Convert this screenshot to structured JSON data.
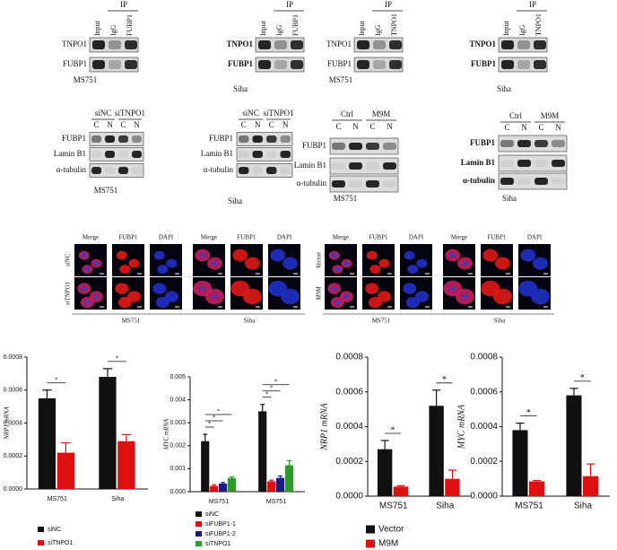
{
  "co_ip": [
    {
      "header": "IP",
      "lanes": [
        "Input",
        "IgG",
        "FUBP1"
      ],
      "rows": [
        "TNPO1",
        "FUBP1"
      ],
      "cell_line": "MS751"
    },
    {
      "header": "IP",
      "lanes": [
        "Input",
        "IgG",
        "FUBP1"
      ],
      "rows": [
        "TNPO1",
        "FUBP1"
      ],
      "cell_line": "Siha"
    },
    {
      "header": "IP",
      "lanes": [
        "Input",
        "IgG",
        "TNPO1"
      ],
      "rows": [
        "TNPO1",
        "FUBP1"
      ],
      "cell_line": "MS751"
    },
    {
      "header": "IP",
      "lanes": [
        "Input",
        "IgG",
        "TNPO1"
      ],
      "rows": [
        "TNPO1",
        "FUBP1"
      ],
      "cell_line": "Siha"
    }
  ],
  "fractionation": [
    {
      "groups": [
        "siNC",
        "siTNPO1"
      ],
      "lanes": [
        "C",
        "N",
        "C",
        "N"
      ],
      "rows": [
        "FUBP1",
        "Lamin B1",
        "α-tubulin"
      ],
      "cell_line": "MS751"
    },
    {
      "groups": [
        "siNC",
        "siTNPO1"
      ],
      "lanes": [
        "C",
        "N",
        "C",
        "N"
      ],
      "rows": [
        "FUBP1",
        "Lamin B1",
        "α-tubulin"
      ],
      "cell_line": "Siha"
    },
    {
      "groups": [
        "Ctrl",
        "M9M"
      ],
      "lanes": [
        "C",
        "N",
        "C",
        "N"
      ],
      "rows": [
        "FUBP1",
        "Lamin B1",
        "α-tubulin"
      ],
      "cell_line": "MS751"
    },
    {
      "groups": [
        "Ctrl",
        "M9M"
      ],
      "lanes": [
        "C",
        "N",
        "C",
        "N"
      ],
      "rows": [
        "FUBP1",
        "Lamin B1",
        "α-tubulin"
      ],
      "cell_line": "Siha"
    }
  ],
  "imaging": [
    {
      "columns": [
        "Merge",
        "FUBP1",
        "DAPI",
        "Merge",
        "FUBP1",
        "DAPI"
      ],
      "rows": [
        "siNC",
        "siTNPO1"
      ],
      "cell_lines": [
        "MS751",
        "Siha"
      ]
    },
    {
      "columns": [
        "Merge",
        "FUBP1",
        "DAPI",
        "Merge",
        "FUBP1",
        "DAPI"
      ],
      "rows": [
        "Vector",
        "M9M"
      ],
      "cell_lines": [
        "MS751",
        "Siha"
      ]
    }
  ],
  "chart_data": [
    {
      "type": "bar",
      "y_label": "NRP1 mRNA",
      "categories": [
        "MS751",
        "Siha"
      ],
      "series": [
        {
          "name": "siNC",
          "color": "#111111",
          "values": [
            0.00055,
            0.00068
          ],
          "errors": [
            5e-05,
            5e-05
          ]
        },
        {
          "name": "siTNPO1",
          "color": "#e01010",
          "values": [
            0.00022,
            0.00029
          ],
          "errors": [
            6e-05,
            4e-05
          ]
        }
      ],
      "ylim": [
        0,
        0.0008
      ],
      "yticks": [
        {
          "value": 0,
          "label": "0.0000"
        },
        0.0002,
        0.0004,
        0.0006,
        0.0008
      ],
      "annotations": [
        "*",
        "*"
      ]
    },
    {
      "type": "bar",
      "y_label": "MYC mRNA",
      "categories": [
        "MS751",
        "MS751"
      ],
      "series": [
        {
          "name": "siNC",
          "color": "#111111",
          "values": [
            0.0022,
            0.0035
          ],
          "errors": [
            0.0003,
            0.0003
          ]
        },
        {
          "name": "siFUBP1-1",
          "color": "#e01010",
          "values": [
            0.00025,
            0.00045
          ],
          "errors": [
            5e-05,
            5e-05
          ]
        },
        {
          "name": "siFUBP1-2",
          "color": "#1a1a80",
          "values": [
            0.00035,
            0.0006
          ],
          "errors": [
            5e-05,
            8e-05
          ]
        },
        {
          "name": "siTNPO1",
          "color": "#2e9a2e",
          "values": [
            0.0006,
            0.00115
          ],
          "errors": [
            5e-05,
            0.0002
          ]
        }
      ],
      "ylim": [
        0,
        0.005
      ],
      "yticks": [
        {
          "value": 0,
          "label": "0.000"
        },
        0.001,
        0.002,
        0.003,
        0.004,
        0.005
      ],
      "annotations": [
        "*",
        "*",
        "*",
        "*",
        "*",
        "*"
      ]
    },
    {
      "type": "bar",
      "y_label": "NRP1 mRNA",
      "categories": [
        "MS751",
        "Siha"
      ],
      "series": [
        {
          "name": "Vector",
          "color": "#111111",
          "values": [
            0.00027,
            0.00052
          ],
          "errors": [
            5e-05,
            9e-05
          ]
        },
        {
          "name": "M9M",
          "color": "#e01010",
          "values": [
            5.5e-05,
            0.0001
          ],
          "errors": [
            5e-06,
            5e-05
          ]
        }
      ],
      "ylim": [
        0,
        0.0008
      ],
      "yticks": [
        {
          "value": 0,
          "label": "0.0000"
        },
        0.0002,
        0.0004,
        0.0006,
        0.0008
      ],
      "annotations": [
        "*",
        "*"
      ]
    },
    {
      "type": "bar",
      "y_label": "MYC mRNA",
      "categories": [
        "MS751",
        "Siha"
      ],
      "series": [
        {
          "color": "#111111",
          "values": [
            0.00038,
            0.00058
          ],
          "errors": [
            4e-05,
            4e-05
          ]
        },
        {
          "color": "#e01010",
          "values": [
            8.5e-05,
            0.000115
          ],
          "errors": [
            5e-06,
            7e-05
          ]
        }
      ],
      "ylim": [
        0,
        0.0008
      ],
      "yticks": [
        {
          "value": 0,
          "label": "0.0000"
        },
        0.0002,
        0.0004,
        0.0006,
        0.0008
      ],
      "annotations": [
        "*",
        "*"
      ]
    }
  ]
}
